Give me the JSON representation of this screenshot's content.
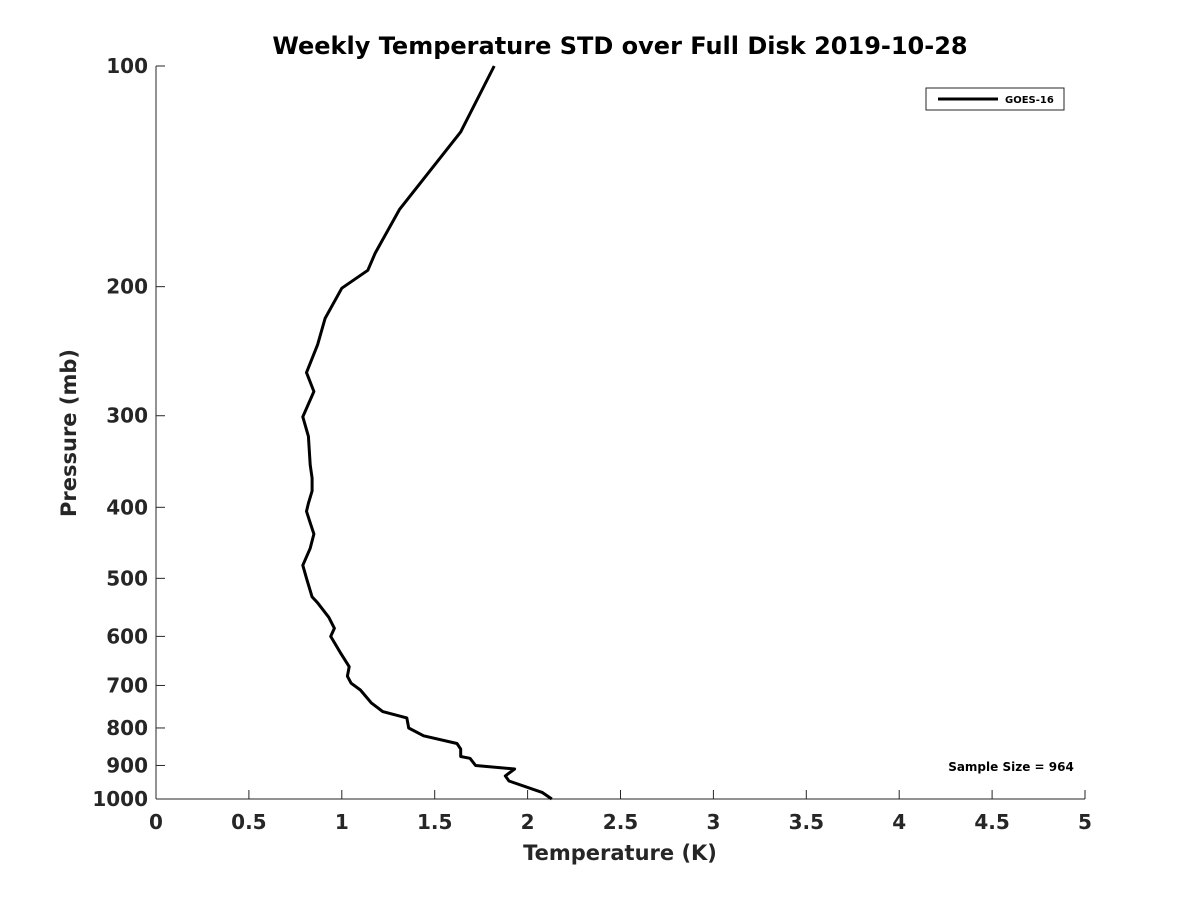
{
  "chart_data": {
    "type": "line",
    "title": "Weekly Temperature STD over Full Disk 2019-10-28",
    "xlabel": "Temperature (K)",
    "ylabel": "Pressure (mb)",
    "xlim": [
      0,
      5
    ],
    "ylim": [
      100,
      1000
    ],
    "yscale": "log",
    "y_reversed": true,
    "grid": false,
    "x_ticks": [
      0,
      0.5,
      1,
      1.5,
      2,
      2.5,
      3,
      3.5,
      4,
      4.5,
      5
    ],
    "x_tick_labels": [
      "0",
      "0.5",
      "1",
      "1.5",
      "2",
      "2.5",
      "3",
      "3.5",
      "4",
      "4.5",
      "5"
    ],
    "y_ticks": [
      100,
      200,
      300,
      400,
      500,
      600,
      700,
      800,
      900,
      1000
    ],
    "y_tick_labels": [
      "100",
      "200",
      "300",
      "400",
      "500",
      "600",
      "700",
      "800",
      "900",
      "1000"
    ],
    "legend": {
      "position": "top-right",
      "entries": [
        "GOES-16"
      ]
    },
    "annotation": "Sample Size = 964",
    "series": [
      {
        "name": "GOES-16",
        "color": "#000000",
        "x": [
          1.82,
          1.64,
          1.31,
          1.18,
          1.14,
          1.0,
          0.91,
          0.87,
          0.81,
          0.85,
          0.79,
          0.82,
          0.83,
          0.84,
          0.84,
          0.82,
          0.81,
          0.83,
          0.85,
          0.83,
          0.79,
          0.81,
          0.84,
          0.87,
          0.93,
          0.96,
          0.94,
          0.99,
          1.04,
          1.03,
          1.05,
          1.1,
          1.16,
          1.22,
          1.35,
          1.36,
          1.44,
          1.62,
          1.64,
          1.64,
          1.69,
          1.72,
          1.93,
          1.88,
          1.9,
          2.08,
          2.13
        ],
        "y": [
          100,
          123,
          157,
          180,
          190,
          201,
          221,
          240,
          262,
          278,
          301,
          320,
          350,
          365,
          380,
          395,
          405,
          420,
          435,
          455,
          480,
          500,
          530,
          540,
          565,
          585,
          600,
          630,
          660,
          680,
          695,
          710,
          740,
          760,
          775,
          800,
          820,
          840,
          855,
          875,
          880,
          900,
          910,
          930,
          945,
          980,
          1000
        ]
      }
    ]
  }
}
